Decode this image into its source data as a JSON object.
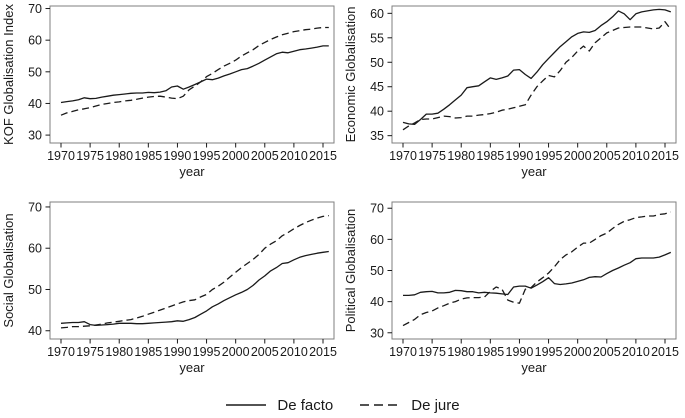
{
  "figure": {
    "background": "#ffffff",
    "line_color": "#1a1a1a",
    "box_color": "#7f7f7f",
    "tick_color": "#1a1a1a",
    "legend": {
      "items": [
        {
          "label": "De facto",
          "style": "solid"
        },
        {
          "label": "De jure",
          "style": "dashed"
        }
      ]
    }
  },
  "chart_data": [
    {
      "type": "line",
      "title": "",
      "ylabel": "KOF Globalisation Index",
      "xlabel": "year",
      "ylim": [
        27.5,
        70.8
      ],
      "yticks": [
        30,
        40,
        50,
        60,
        70
      ],
      "xticks": [
        1970,
        1975,
        1980,
        1985,
        1990,
        1995,
        2000,
        2005,
        2010,
        2015
      ],
      "x_start": 1970,
      "x_end": 2016,
      "grid": false,
      "series": [
        {
          "name": "De facto",
          "style": "solid",
          "values": [
            40.3,
            40.6,
            40.8,
            41.2,
            41.8,
            41.5,
            41.6,
            42.0,
            42.3,
            42.6,
            42.8,
            43.0,
            43.2,
            43.3,
            43.3,
            43.5,
            43.4,
            43.6,
            44.0,
            45.2,
            45.5,
            44.5,
            45.2,
            46.0,
            46.8,
            47.7,
            47.5,
            48.0,
            48.7,
            49.3,
            50.0,
            50.7,
            51.0,
            51.8,
            52.7,
            53.7,
            54.7,
            55.7,
            56.2,
            56.0,
            56.5,
            57.0,
            57.2,
            57.5,
            57.8,
            58.2,
            58.2
          ]
        },
        {
          "name": "De jure",
          "style": "dashed",
          "values": [
            36.3,
            37.0,
            37.5,
            38.0,
            38.3,
            38.7,
            39.2,
            39.7,
            40.0,
            40.3,
            40.5,
            40.8,
            41.0,
            41.3,
            41.7,
            42.0,
            42.2,
            42.3,
            42.0,
            41.7,
            41.5,
            42.3,
            44.3,
            45.5,
            46.8,
            48.5,
            49.5,
            50.7,
            51.8,
            52.7,
            53.7,
            55.0,
            56.0,
            57.0,
            58.3,
            59.3,
            60.2,
            61.0,
            61.7,
            62.2,
            62.7,
            63.0,
            63.3,
            63.5,
            63.8,
            64.0,
            64.0
          ]
        }
      ]
    },
    {
      "type": "line",
      "title": "",
      "ylabel": "Economic Globalisation",
      "xlabel": "year",
      "ylim": [
        33.5,
        61.5
      ],
      "yticks": [
        35,
        40,
        45,
        50,
        55,
        60
      ],
      "xticks": [
        1970,
        1975,
        1980,
        1985,
        1990,
        1995,
        2000,
        2005,
        2010,
        2015
      ],
      "x_start": 1970,
      "x_end": 2016,
      "grid": false,
      "series": [
        {
          "name": "De facto",
          "style": "solid",
          "values": [
            37.7,
            37.4,
            37.3,
            38.3,
            39.4,
            39.4,
            39.6,
            40.4,
            41.3,
            42.3,
            43.3,
            44.8,
            45.0,
            45.2,
            46.0,
            46.8,
            46.5,
            46.8,
            47.2,
            48.4,
            48.5,
            47.5,
            46.7,
            48.0,
            49.5,
            50.8,
            52.0,
            53.2,
            54.2,
            55.2,
            55.9,
            56.2,
            56.1,
            56.5,
            57.5,
            58.3,
            59.3,
            60.5,
            59.9,
            58.7,
            59.9,
            60.3,
            60.5,
            60.7,
            60.8,
            60.7,
            60.3
          ]
        },
        {
          "name": "De jure",
          "style": "dashed",
          "values": [
            36.2,
            37.0,
            37.6,
            38.3,
            38.4,
            38.4,
            38.7,
            39.0,
            38.9,
            38.6,
            38.7,
            39.0,
            39.0,
            39.2,
            39.3,
            39.5,
            39.8,
            40.2,
            40.4,
            40.7,
            41.0,
            41.3,
            43.3,
            45.0,
            46.2,
            47.3,
            47.0,
            48.3,
            50.0,
            51.0,
            52.3,
            53.3,
            52.3,
            54.0,
            55.0,
            56.0,
            56.5,
            57.0,
            57.1,
            57.2,
            57.2,
            57.2,
            57.0,
            56.8,
            57.0,
            58.3,
            56.7
          ]
        }
      ]
    },
    {
      "type": "line",
      "title": "",
      "ylabel": "Social Globalisation",
      "xlabel": "year",
      "ylim": [
        38.0,
        71.2
      ],
      "yticks": [
        40,
        50,
        60,
        70
      ],
      "xticks": [
        1970,
        1975,
        1980,
        1985,
        1990,
        1995,
        2000,
        2005,
        2010,
        2015
      ],
      "x_start": 1970,
      "x_end": 2016,
      "grid": false,
      "series": [
        {
          "name": "De facto",
          "style": "solid",
          "values": [
            41.8,
            41.9,
            42.0,
            42.0,
            42.2,
            41.5,
            41.3,
            41.4,
            41.5,
            41.6,
            41.8,
            41.8,
            41.8,
            41.7,
            41.7,
            41.8,
            41.9,
            42.0,
            42.1,
            42.2,
            42.4,
            42.3,
            42.7,
            43.2,
            44.0,
            44.8,
            45.8,
            46.5,
            47.3,
            48.0,
            48.7,
            49.3,
            50.0,
            51.0,
            52.3,
            53.3,
            54.5,
            55.3,
            56.3,
            56.5,
            57.2,
            57.8,
            58.2,
            58.5,
            58.8,
            59.0,
            59.2
          ]
        },
        {
          "name": "De jure",
          "style": "dashed",
          "values": [
            40.7,
            40.8,
            41.0,
            41.0,
            41.1,
            41.2,
            41.4,
            41.6,
            41.9,
            42.1,
            42.3,
            42.5,
            42.7,
            43.1,
            43.5,
            44.0,
            44.5,
            45.0,
            45.5,
            46.0,
            46.5,
            47.0,
            47.3,
            47.5,
            48.2,
            48.8,
            50.0,
            50.8,
            51.8,
            53.0,
            54.2,
            55.3,
            56.3,
            57.3,
            58.5,
            60.0,
            61.0,
            61.8,
            63.0,
            63.8,
            64.7,
            65.5,
            66.2,
            66.8,
            67.3,
            67.7,
            67.9
          ]
        }
      ]
    },
    {
      "type": "line",
      "title": "",
      "ylabel": "Political Globalisation",
      "xlabel": "year",
      "ylim": [
        28.0,
        72.0
      ],
      "yticks": [
        30,
        40,
        50,
        60,
        70
      ],
      "xticks": [
        1970,
        1975,
        1980,
        1985,
        1990,
        1995,
        2000,
        2005,
        2010,
        2015
      ],
      "x_start": 1970,
      "x_end": 2016,
      "grid": false,
      "series": [
        {
          "name": "De facto",
          "style": "solid",
          "values": [
            42.0,
            42.0,
            42.2,
            43.0,
            43.2,
            43.3,
            42.8,
            42.8,
            43.0,
            43.6,
            43.5,
            43.2,
            43.2,
            42.8,
            43.0,
            42.8,
            42.7,
            42.5,
            42.3,
            44.7,
            45.0,
            45.0,
            44.3,
            45.3,
            46.4,
            47.7,
            45.8,
            45.5,
            45.7,
            46.0,
            46.5,
            47.0,
            47.8,
            48.0,
            47.9,
            49.0,
            50.0,
            50.8,
            51.7,
            52.5,
            53.8,
            54.0,
            54.0,
            54.0,
            54.3,
            55.0,
            55.8
          ]
        },
        {
          "name": "De jure",
          "style": "dashed",
          "values": [
            32.3,
            33.3,
            34.3,
            35.8,
            36.5,
            37.0,
            38.0,
            38.7,
            39.5,
            40.0,
            40.8,
            41.2,
            41.3,
            41.3,
            41.5,
            43.3,
            44.7,
            44.0,
            40.5,
            39.8,
            39.5,
            44.0,
            44.5,
            46.3,
            47.7,
            49.2,
            51.2,
            53.5,
            55.0,
            56.0,
            57.5,
            58.8,
            58.8,
            60.0,
            61.2,
            62.0,
            63.5,
            64.8,
            65.8,
            66.3,
            67.0,
            67.2,
            67.5,
            67.5,
            68.0,
            68.2,
            68.8
          ]
        }
      ]
    }
  ]
}
